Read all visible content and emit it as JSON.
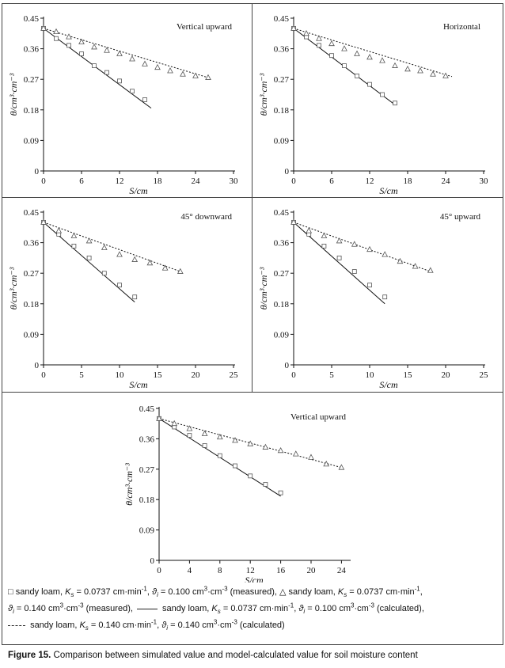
{
  "chart_data": [
    {
      "type": "line",
      "title": "Vertical upward",
      "ylabel": "θ/cm³·cm⁻³",
      "xlabel": "S/cm",
      "xlim": [
        0,
        30
      ],
      "ylim": [
        0,
        0.45
      ],
      "xticks": [
        "0",
        "6",
        "12",
        "18",
        "24",
        "30"
      ],
      "yticks": [
        "0",
        "0.09",
        "0.18",
        "0.27",
        "0.36",
        "0.45"
      ],
      "series": [
        {
          "marker": "square",
          "x": [
            0,
            2,
            4,
            6,
            8,
            10,
            12,
            14,
            16
          ],
          "y": [
            0.42,
            0.39,
            0.37,
            0.345,
            0.31,
            0.29,
            0.265,
            0.235,
            0.21
          ]
        },
        {
          "marker": "triangle",
          "x": [
            0,
            2,
            4,
            6,
            8,
            10,
            12,
            14,
            16,
            18,
            20,
            22,
            24,
            26
          ],
          "y": [
            0.42,
            0.41,
            0.395,
            0.38,
            0.365,
            0.355,
            0.345,
            0.33,
            0.315,
            0.305,
            0.295,
            0.285,
            0.28,
            0.275
          ]
        },
        {
          "style": "solid",
          "x": [
            0,
            17
          ],
          "y": [
            0.42,
            0.185
          ]
        },
        {
          "style": "dotted",
          "x": [
            0,
            26
          ],
          "y": [
            0.42,
            0.275
          ]
        }
      ]
    },
    {
      "type": "line",
      "title": "Horizontal",
      "ylabel": "θ/cm³·cm⁻³",
      "xlabel": "S/cm",
      "xlim": [
        0,
        30
      ],
      "ylim": [
        0,
        0.45
      ],
      "xticks": [
        "0",
        "6",
        "12",
        "18",
        "24",
        "30"
      ],
      "yticks": [
        "0",
        "0.09",
        "0.18",
        "0.27",
        "0.36",
        "0.45"
      ],
      "series": [
        {
          "marker": "square",
          "x": [
            0,
            2,
            4,
            6,
            8,
            10,
            12,
            14,
            16
          ],
          "y": [
            0.42,
            0.395,
            0.37,
            0.34,
            0.31,
            0.28,
            0.255,
            0.225,
            0.2
          ]
        },
        {
          "marker": "triangle",
          "x": [
            0,
            2,
            4,
            6,
            8,
            10,
            12,
            14,
            16,
            18,
            20,
            22,
            24
          ],
          "y": [
            0.42,
            0.405,
            0.39,
            0.375,
            0.36,
            0.345,
            0.335,
            0.325,
            0.31,
            0.3,
            0.295,
            0.285,
            0.28
          ]
        },
        {
          "style": "solid",
          "x": [
            0,
            16
          ],
          "y": [
            0.42,
            0.195
          ]
        },
        {
          "style": "dotted",
          "x": [
            0,
            25
          ],
          "y": [
            0.42,
            0.278
          ]
        }
      ]
    },
    {
      "type": "line",
      "title": "45° downward",
      "ylabel": "θ/cm³·cm⁻³",
      "xlabel": "S/cm",
      "xlim": [
        0,
        25
      ],
      "ylim": [
        0,
        0.45
      ],
      "xticks": [
        "0",
        "5",
        "10",
        "15",
        "20",
        "25"
      ],
      "yticks": [
        "0",
        "0.09",
        "0.18",
        "0.27",
        "0.36",
        "0.45"
      ],
      "series": [
        {
          "marker": "square",
          "x": [
            0,
            2,
            4,
            6,
            8,
            10,
            12
          ],
          "y": [
            0.42,
            0.385,
            0.35,
            0.315,
            0.27,
            0.235,
            0.2
          ]
        },
        {
          "marker": "triangle",
          "x": [
            0,
            2,
            4,
            6,
            8,
            10,
            12,
            14,
            16,
            18
          ],
          "y": [
            0.42,
            0.395,
            0.38,
            0.365,
            0.345,
            0.325,
            0.31,
            0.3,
            0.285,
            0.275
          ]
        },
        {
          "style": "solid",
          "x": [
            0,
            12
          ],
          "y": [
            0.42,
            0.185
          ]
        },
        {
          "style": "dotted",
          "x": [
            0,
            18
          ],
          "y": [
            0.42,
            0.275
          ]
        }
      ]
    },
    {
      "type": "line",
      "title": "45° upward",
      "ylabel": "θ/cm³·cm⁻³",
      "xlabel": "S/cm",
      "xlim": [
        0,
        25
      ],
      "ylim": [
        0,
        0.45
      ],
      "xticks": [
        "0",
        "5",
        "10",
        "15",
        "20",
        "25"
      ],
      "yticks": [
        "0",
        "0.09",
        "0.18",
        "0.27",
        "0.36",
        "0.45"
      ],
      "series": [
        {
          "marker": "square",
          "x": [
            0,
            2,
            4,
            6,
            8,
            10,
            12
          ],
          "y": [
            0.42,
            0.385,
            0.35,
            0.315,
            0.275,
            0.235,
            0.2
          ]
        },
        {
          "marker": "triangle",
          "x": [
            0,
            2,
            4,
            6,
            8,
            10,
            12,
            14,
            16,
            18
          ],
          "y": [
            0.42,
            0.395,
            0.38,
            0.365,
            0.355,
            0.34,
            0.325,
            0.305,
            0.29,
            0.278
          ]
        },
        {
          "style": "solid",
          "x": [
            0,
            12
          ],
          "y": [
            0.42,
            0.18
          ]
        },
        {
          "style": "dotted",
          "x": [
            0,
            18
          ],
          "y": [
            0.42,
            0.275
          ]
        }
      ]
    },
    {
      "type": "line",
      "title": "Vertical upward",
      "ylabel": "θ/cm³·cm⁻³",
      "xlabel": "S/cm",
      "xlim": [
        0,
        25
      ],
      "ylim": [
        0,
        0.45
      ],
      "xticks": [
        "0",
        "4",
        "8",
        "12",
        "16",
        "20",
        "24"
      ],
      "yticks": [
        "0",
        "0.09",
        "0.18",
        "0.27",
        "0.36",
        "0.45"
      ],
      "series": [
        {
          "marker": "square",
          "x": [
            0,
            2,
            4,
            6,
            8,
            10,
            12,
            14,
            16
          ],
          "y": [
            0.42,
            0.395,
            0.37,
            0.34,
            0.31,
            0.28,
            0.25,
            0.225,
            0.2
          ]
        },
        {
          "marker": "triangle",
          "x": [
            0,
            2,
            4,
            6,
            8,
            10,
            12,
            14,
            16,
            18,
            20,
            22,
            24
          ],
          "y": [
            0.42,
            0.405,
            0.39,
            0.375,
            0.365,
            0.355,
            0.345,
            0.335,
            0.325,
            0.315,
            0.305,
            0.285,
            0.275
          ]
        },
        {
          "style": "solid",
          "x": [
            0,
            16
          ],
          "y": [
            0.42,
            0.19
          ]
        },
        {
          "style": "dotted",
          "x": [
            0,
            24
          ],
          "y": [
            0.42,
            0.275
          ]
        }
      ]
    }
  ],
  "legend": {
    "square_symbol": "□",
    "triangle_symbol": "△",
    "material": "sandy loam,",
    "ks_sym": "K",
    "ks_sub": "s",
    "theta_sym": "ϑ",
    "theta_sub": "i",
    "eq": " = ",
    "ks_a": "0.0737",
    "ks_b": "0.140",
    "ks_unit": "cm·min",
    "ks_unit_sup": "-1",
    "theta_a": "0.100",
    "theta_b": "0.140",
    "theta_unit": "cm",
    "theta_unit_sup1": "3",
    "theta_unit_mid": "·cm",
    "theta_unit_sup2": "-3",
    "measured": "(measured),",
    "calculated_comma": "(calculated),",
    "calculated": "(calculated)",
    "comma": ","
  },
  "caption": {
    "label": "Figure 15.",
    "text": " Comparison between simulated value and model-calculated value for soil moisture content"
  }
}
